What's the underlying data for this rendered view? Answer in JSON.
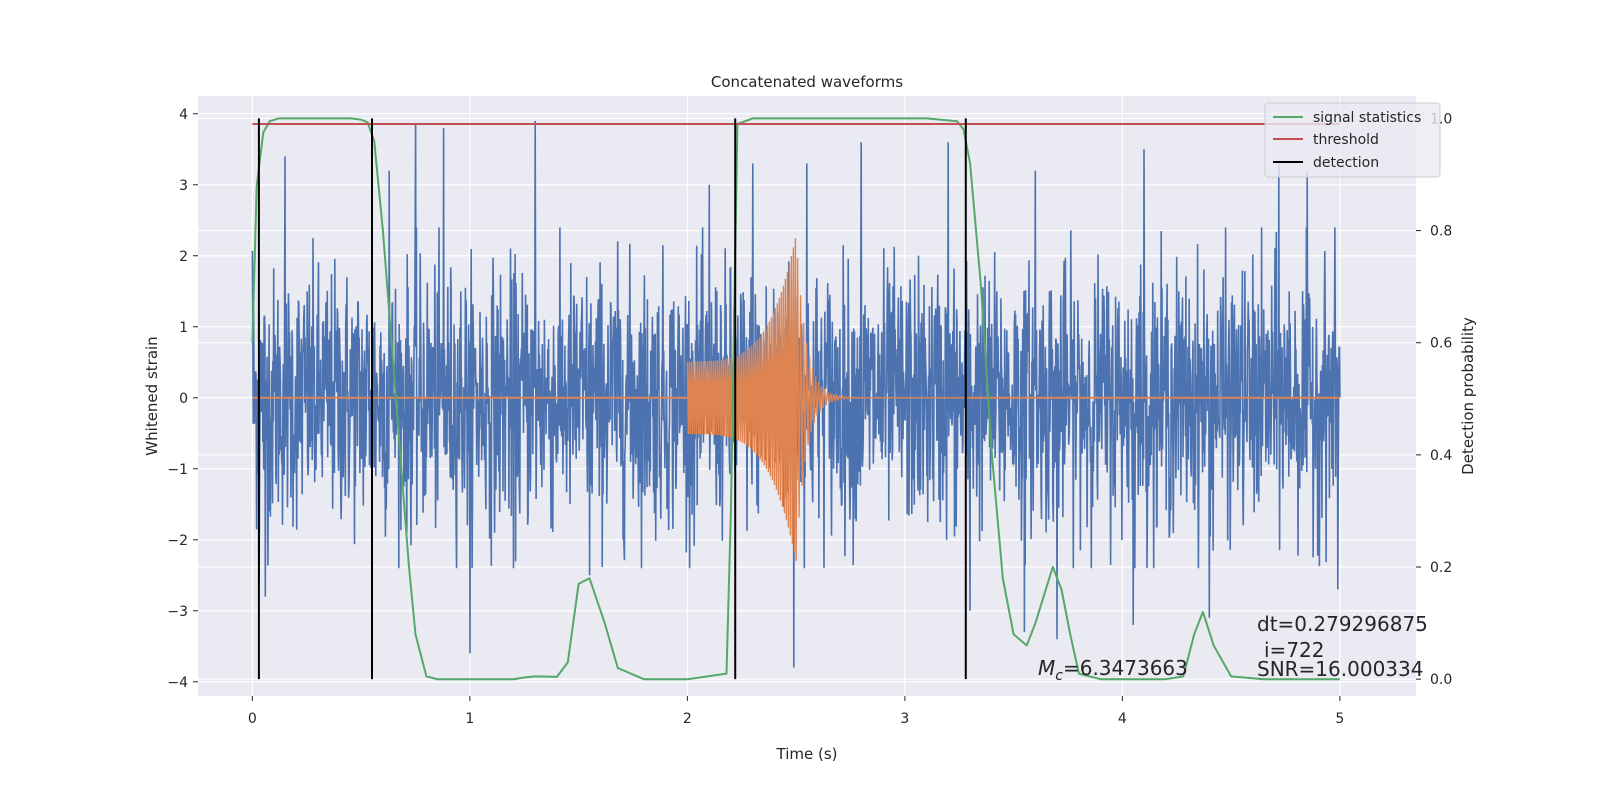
{
  "chart_data": {
    "type": "line",
    "title": "Concatenated waveforms",
    "xlabel": "Time (s)",
    "ylabel": "Whitened strain",
    "y2label": "Detection probability",
    "xlim": [
      -0.25,
      5.35
    ],
    "ylim": [
      -4.2,
      4.25
    ],
    "y2lim": [
      -0.03,
      1.04
    ],
    "xticks": [
      0,
      1,
      2,
      3,
      4,
      5
    ],
    "yticks": [
      -4,
      -3,
      -2,
      -1,
      0,
      1,
      2,
      3,
      4
    ],
    "y2ticks": [
      0.0,
      0.2,
      0.4,
      0.6,
      0.8,
      1.0
    ],
    "y2tick_labels": [
      "0.0",
      "0.2",
      "0.4",
      "0.6",
      "0.8",
      "1.0"
    ],
    "grid": true,
    "legend_position": "top-right",
    "legend": [
      {
        "label": "signal statistics",
        "color": "#55a868"
      },
      {
        "label": "threshold",
        "color": "#c44e52"
      },
      {
        "label": "detection",
        "color": "#000000"
      }
    ],
    "series": [
      {
        "kind": "noise",
        "axis": "left",
        "color": "#4c72b0",
        "x_range": [
          0,
          5
        ],
        "typical_amplitude": 1.5,
        "peak_positive": [
          [
            0.0,
            2.07
          ],
          [
            0.15,
            3.4
          ],
          [
            0.63,
            3.2
          ],
          [
            0.75,
            3.85
          ],
          [
            0.88,
            3.8
          ],
          [
            1.3,
            3.9
          ],
          [
            1.55,
            3.5
          ],
          [
            2.1,
            3.0
          ],
          [
            2.3,
            3.3
          ],
          [
            2.55,
            3.3
          ],
          [
            2.8,
            3.6
          ],
          [
            3.2,
            3.6
          ],
          [
            3.6,
            3.2
          ],
          [
            4.1,
            3.5
          ],
          [
            4.72,
            3.3
          ],
          [
            4.85,
            3.2
          ]
        ],
        "peak_negative": [
          [
            0.03,
            -2.55
          ],
          [
            0.06,
            -2.8
          ],
          [
            1.0,
            -3.6
          ],
          [
            1.2,
            -2.4
          ],
          [
            1.55,
            -2.5
          ],
          [
            2.49,
            -3.8
          ],
          [
            3.3,
            -3.0
          ],
          [
            3.55,
            -3.3
          ],
          [
            3.7,
            -3.4
          ],
          [
            4.05,
            -3.2
          ],
          [
            4.4,
            -3.1
          ],
          [
            4.99,
            -2.7
          ]
        ]
      },
      {
        "kind": "chirp",
        "name": "",
        "axis": "left",
        "color": "#dd8452",
        "t_start": 2.0,
        "t_merger": 2.5,
        "amplitude_start": 0.6,
        "amplitude_peak": 2.3,
        "ringdown_end": 3.3
      },
      {
        "kind": "line",
        "name": "signal statistics",
        "axis": "right",
        "color": "#55a868",
        "x": [
          0.0,
          0.02,
          0.05,
          0.08,
          0.12,
          0.2,
          0.3,
          0.45,
          0.5,
          0.53,
          0.56,
          0.6,
          0.65,
          0.7,
          0.72,
          0.75,
          0.8,
          0.85,
          1.0,
          1.2,
          1.25,
          1.3,
          1.4,
          1.45,
          1.5,
          1.55,
          1.62,
          1.68,
          1.8,
          2.0,
          2.18,
          2.2,
          2.23,
          2.3,
          2.4,
          2.6,
          2.8,
          3.0,
          3.1,
          3.24,
          3.27,
          3.3,
          3.35,
          3.4,
          3.45,
          3.5,
          3.56,
          3.6,
          3.68,
          3.72,
          3.76,
          3.8,
          3.9,
          4.2,
          4.28,
          4.33,
          4.37,
          4.42,
          4.5,
          4.65,
          5.0
        ],
        "y": [
          0.6,
          0.88,
          0.975,
          0.995,
          1.0,
          1.0,
          1.0,
          1.0,
          0.998,
          0.993,
          0.96,
          0.8,
          0.55,
          0.3,
          0.2,
          0.08,
          0.005,
          0.0,
          0.0,
          0.0,
          0.003,
          0.005,
          0.004,
          0.03,
          0.17,
          0.18,
          0.1,
          0.02,
          0.0,
          0.0,
          0.01,
          0.3,
          0.99,
          1.0,
          1.0,
          1.0,
          1.0,
          1.0,
          1.0,
          0.995,
          0.98,
          0.92,
          0.7,
          0.4,
          0.18,
          0.08,
          0.06,
          0.1,
          0.2,
          0.16,
          0.08,
          0.01,
          0.0,
          0.0,
          0.005,
          0.08,
          0.12,
          0.06,
          0.005,
          0.0,
          0.0
        ]
      },
      {
        "kind": "hline",
        "name": "threshold",
        "axis": "right",
        "color": "#c44e52",
        "y": 0.99,
        "x_range": [
          0,
          5
        ]
      },
      {
        "kind": "vlines",
        "name": "detection",
        "axis": "right",
        "color": "#000000",
        "x": [
          0.03,
          0.55,
          2.22,
          3.28
        ],
        "y_range": [
          0,
          1.0
        ]
      }
    ],
    "annotations": {
      "mc": "=6.3473663",
      "mc_symbol_main": "M",
      "mc_symbol_sub": "c",
      "dt": "dt=0.279296875",
      "i": "i=722",
      "snr": "SNR=16.000334"
    }
  }
}
